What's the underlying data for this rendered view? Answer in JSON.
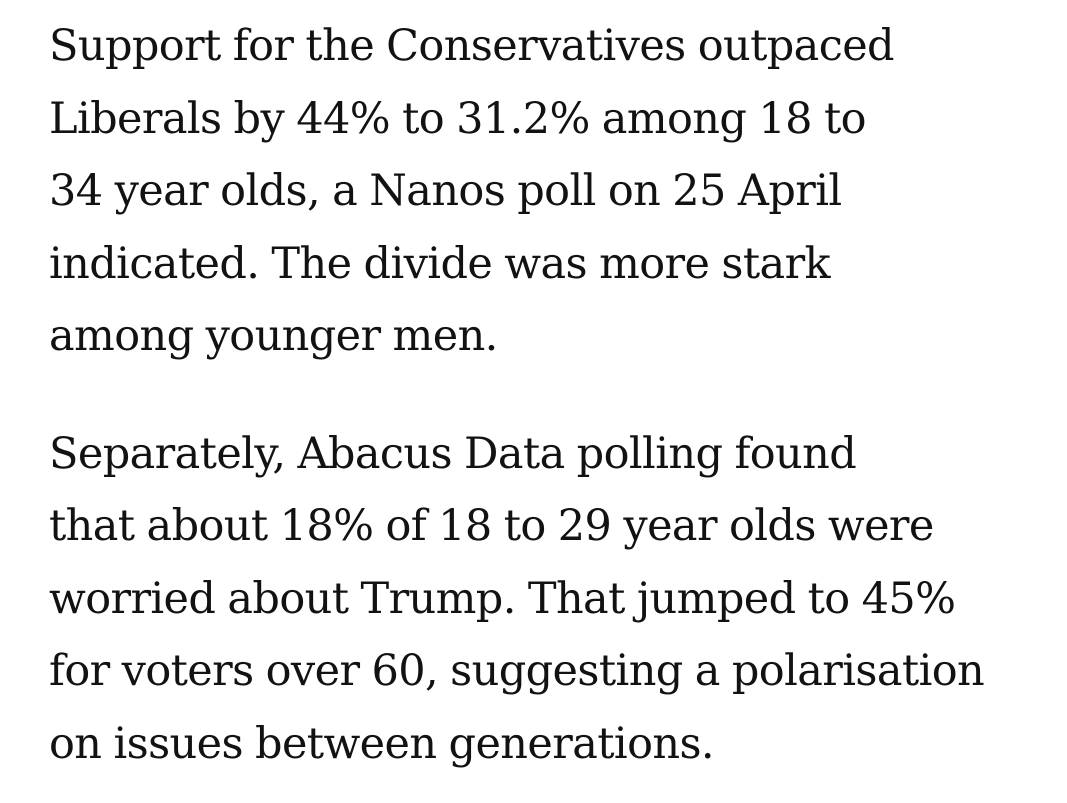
{
  "article": {
    "paragraphs": [
      {
        "lines": [
          "Support for the Conservatives outpaced",
          "Liberals by 44% to 31.2% among 18 to",
          "34 year olds, a Nanos poll on 25 April",
          "indicated. The divide was more stark",
          "among younger men."
        ]
      },
      {
        "lines": [
          "Separately, Abacus Data polling found",
          "that about 18% of 18 to 29 year olds were",
          "worried about Trump. That jumped to 45%",
          "for voters over 60, suggesting a polarisation",
          "on issues between generations."
        ]
      }
    ]
  }
}
